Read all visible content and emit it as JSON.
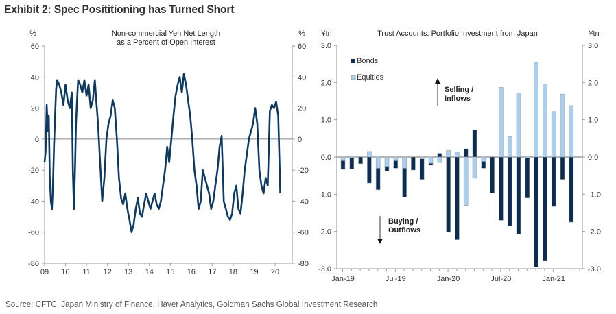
{
  "title": "Exhibit 2: Spec Posititioning has Turned Short",
  "source": "Source: CFTC, Japan Ministry of Finance, Haver Analytics, Goldman Sachs Global Investment Research",
  "colors": {
    "line": "#0d3a63",
    "bonds": "#0c2d52",
    "equities": "#a9d1ef",
    "axis": "#999999",
    "zero": "#888888"
  },
  "chart_data": [
    {
      "type": "line",
      "title": "Non-commercial  Yen Net Length",
      "subtitle": "as a Percent of Open Interest",
      "ylabel_left": "%",
      "ylabel_right": "%",
      "ylim": [
        -80,
        60
      ],
      "yticks": [
        60,
        40,
        20,
        0,
        -20,
        -40,
        -60,
        -80
      ],
      "ytick_labels": [
        "60",
        "40",
        "20",
        "0",
        "-20",
        "-40",
        "-60",
        "-80"
      ],
      "xlim": [
        2009,
        2020.75
      ],
      "xticks": [
        2009,
        2010,
        2011,
        2012,
        2013,
        2014,
        2015,
        2016,
        2017,
        2018,
        2019,
        2020
      ],
      "xtick_labels": [
        "09",
        "10",
        "11",
        "12",
        "13",
        "14",
        "15",
        "16",
        "17",
        "18",
        "19",
        "20"
      ],
      "grid": false,
      "series": [
        {
          "name": "Non-commercial Yen Net Length",
          "x": [
            2009.0,
            2009.05,
            2009.1,
            2009.15,
            2009.2,
            2009.25,
            2009.3,
            2009.35,
            2009.4,
            2009.45,
            2009.5,
            2009.55,
            2009.6,
            2009.7,
            2009.8,
            2009.9,
            2010.0,
            2010.1,
            2010.2,
            2010.3,
            2010.35,
            2010.4,
            2010.45,
            2010.5,
            2010.55,
            2010.6,
            2010.7,
            2010.8,
            2010.9,
            2011.0,
            2011.1,
            2011.2,
            2011.3,
            2011.4,
            2011.45,
            2011.55,
            2011.65,
            2011.75,
            2011.85,
            2011.95,
            2012.05,
            2012.15,
            2012.25,
            2012.35,
            2012.45,
            2012.55,
            2012.65,
            2012.75,
            2012.85,
            2012.95,
            2013.05,
            2013.15,
            2013.25,
            2013.35,
            2013.45,
            2013.55,
            2013.65,
            2013.75,
            2013.85,
            2013.95,
            2014.05,
            2014.15,
            2014.25,
            2014.35,
            2014.45,
            2014.55,
            2014.65,
            2014.75,
            2014.85,
            2014.95,
            2015.05,
            2015.15,
            2015.25,
            2015.35,
            2015.45,
            2015.55,
            2015.65,
            2015.75,
            2015.85,
            2015.95,
            2016.05,
            2016.15,
            2016.25,
            2016.35,
            2016.45,
            2016.55,
            2016.65,
            2016.75,
            2016.85,
            2016.95,
            2017.05,
            2017.15,
            2017.25,
            2017.35,
            2017.45,
            2017.55,
            2017.65,
            2017.75,
            2017.85,
            2017.95,
            2018.05,
            2018.15,
            2018.25,
            2018.35,
            2018.45,
            2018.55,
            2018.65,
            2018.75,
            2018.85,
            2018.95,
            2019.05,
            2019.15,
            2019.25,
            2019.35,
            2019.45,
            2019.55,
            2019.65,
            2019.75,
            2019.85,
            2019.95,
            2020.05,
            2020.15,
            2020.2,
            2020.25
          ],
          "values": [
            -15,
            -8,
            22,
            5,
            15,
            -25,
            -40,
            -45,
            -30,
            -5,
            15,
            32,
            38,
            35,
            30,
            22,
            35,
            25,
            20,
            30,
            -20,
            -45,
            -20,
            10,
            25,
            38,
            35,
            30,
            38,
            28,
            35,
            20,
            25,
            38,
            28,
            10,
            -15,
            -40,
            -25,
            0,
            10,
            15,
            25,
            20,
            0,
            -25,
            -38,
            -42,
            -35,
            -45,
            -52,
            -60,
            -55,
            -45,
            -38,
            -48,
            -50,
            -42,
            -35,
            -40,
            -45,
            -40,
            -35,
            -42,
            -45,
            -40,
            -30,
            -20,
            -5,
            -15,
            0,
            15,
            28,
            35,
            40,
            30,
            42,
            35,
            25,
            15,
            0,
            -20,
            -30,
            -45,
            -40,
            -20,
            -25,
            -30,
            -35,
            -45,
            -40,
            -30,
            -20,
            -5,
            2,
            -40,
            -45,
            -50,
            -52,
            -48,
            -35,
            -30,
            -45,
            -48,
            -35,
            -20,
            -10,
            0,
            5,
            10,
            20,
            10,
            -20,
            -30,
            -35,
            -25,
            -30,
            18,
            22,
            20,
            24,
            15,
            -10,
            -35
          ]
        }
      ]
    },
    {
      "type": "bar",
      "stacked": true,
      "title": "Trust Accounts: Portfolio Investment  from Japan",
      "ylabel_left": "¥tn",
      "ylabel_right": "¥tn",
      "ylim": [
        -3.0,
        3.0
      ],
      "yticks": [
        3.0,
        2.0,
        1.0,
        0.0,
        -1.0,
        -2.0,
        -3.0
      ],
      "ytick_labels": [
        "3.0",
        "2.0",
        "1.0",
        "0.0",
        "-1.0",
        "-2.0",
        "-3.0"
      ],
      "categories": [
        "Jan-19",
        "Feb-19",
        "Mar-19",
        "Apr-19",
        "May-19",
        "Jun-19",
        "Jul-19",
        "Aug-19",
        "Sep-19",
        "Oct-19",
        "Nov-19",
        "Dec-19",
        "Jan-20",
        "Feb-20",
        "Mar-20",
        "Apr-20",
        "May-20",
        "Jun-20",
        "Jul-20",
        "Aug-20",
        "Sep-20",
        "Oct-20",
        "Nov-20",
        "Dec-20",
        "Jan-21",
        "Feb-21",
        "Mar-21"
      ],
      "xtick_labels": [
        "Jan-19",
        "Jul-19",
        "Jan-20",
        "Jul-20",
        "Jan-21"
      ],
      "xtick_label_index": [
        0,
        6,
        12,
        18,
        24
      ],
      "legend": {
        "position": "top-left",
        "entries": [
          "Bonds",
          "Equities"
        ]
      },
      "grid": false,
      "series": [
        {
          "name": "Bonds",
          "values": [
            -0.23,
            -0.3,
            -0.18,
            -0.7,
            -0.58,
            -0.13,
            -0.2,
            -0.78,
            -0.35,
            -0.55,
            -0.05,
            0.1,
            -2.02,
            -2.22,
            0.22,
            0.73,
            -0.18,
            -0.97,
            -1.7,
            -1.85,
            -2.07,
            -1.07,
            -2.95,
            -2.78,
            -1.33,
            -0.6,
            -1.75
          ]
        },
        {
          "name": "Equities",
          "values": [
            -0.1,
            -0.02,
            0.02,
            0.15,
            -0.3,
            -0.25,
            -0.1,
            -0.3,
            0.0,
            -0.05,
            -0.17,
            -0.15,
            0.18,
            0.13,
            -1.3,
            -0.57,
            -0.12,
            0.0,
            1.87,
            0.55,
            1.72,
            -0.03,
            2.54,
            1.96,
            1.22,
            1.69,
            1.38
          ]
        }
      ],
      "annotations": [
        {
          "text": [
            "Selling /",
            "Inflows"
          ],
          "arrow": "up"
        },
        {
          "text": [
            "Buying /",
            "Outflows"
          ],
          "arrow": "down"
        }
      ]
    }
  ]
}
